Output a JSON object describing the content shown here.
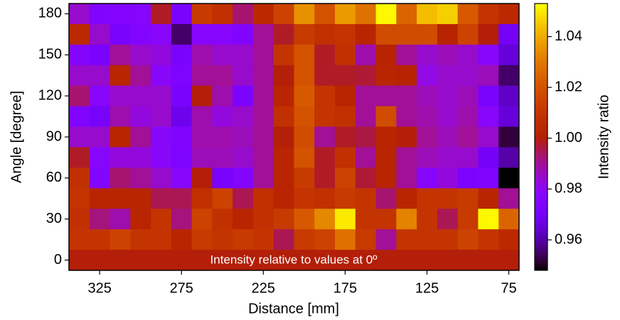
{
  "chart_data": {
    "type": "heatmap",
    "colormap": "gnuplot",
    "xlabel": "Distance [mm]",
    "ylabel": "Angle [degree]",
    "colorbar_label": "Intensity ratio",
    "annotation": "Intensity relative to values at 0º",
    "x": [
      337.5,
      325,
      312.5,
      300,
      287.5,
      275,
      262.5,
      250,
      237.5,
      225,
      212.5,
      200,
      187.5,
      175,
      162.5,
      150,
      137.5,
      125,
      112.5,
      100,
      87.5,
      75
    ],
    "y": [
      180,
      165,
      150,
      135,
      120,
      105,
      90,
      75,
      60,
      45,
      30,
      15,
      0
    ],
    "z": [
      [
        0.985,
        0.975,
        0.976,
        0.977,
        0.998,
        0.972,
        1.012,
        1.008,
        0.993,
        1.005,
        1.015,
        1.035,
        1.02,
        1.037,
        1.028,
        1.052,
        1.025,
        1.043,
        1.046,
        1.022,
        1.01,
        1.005
      ],
      [
        1.005,
        0.985,
        0.972,
        0.976,
        0.978,
        0.955,
        0.977,
        0.977,
        0.975,
        0.99,
        0.998,
        1.012,
        1.008,
        1.01,
        1.003,
        1.018,
        1.018,
        1.018,
        1.002,
        1.015,
        1.0,
        0.97
      ],
      [
        0.976,
        0.972,
        0.99,
        0.985,
        0.983,
        0.972,
        0.988,
        0.985,
        0.985,
        0.99,
        1.01,
        1.02,
        0.998,
        1.008,
        0.988,
        1.002,
        0.99,
        0.985,
        0.987,
        0.985,
        0.978,
        0.965
      ],
      [
        0.985,
        0.985,
        1.003,
        0.99,
        0.978,
        0.974,
        0.99,
        0.99,
        0.985,
        0.99,
        1.0,
        1.02,
        0.998,
        0.998,
        0.997,
        1.003,
        1.002,
        0.982,
        0.985,
        0.985,
        0.987,
        0.955
      ],
      [
        0.993,
        0.978,
        0.985,
        0.985,
        0.985,
        0.972,
        1.0,
        0.988,
        0.973,
        0.99,
        1.003,
        1.022,
        1.01,
        1.003,
        0.99,
        0.99,
        0.99,
        0.987,
        0.985,
        0.987,
        0.972,
        0.963
      ],
      [
        0.975,
        0.971,
        0.988,
        0.983,
        0.985,
        0.968,
        0.988,
        0.983,
        0.985,
        0.99,
        1.008,
        1.02,
        1.01,
        1.008,
        0.99,
        1.018,
        0.99,
        0.988,
        0.985,
        0.988,
        0.978,
        0.965
      ],
      [
        0.985,
        0.985,
        1.003,
        0.99,
        0.978,
        0.975,
        0.988,
        0.988,
        0.987,
        0.99,
        1.0,
        1.018,
        0.99,
        0.998,
        0.996,
        1.003,
        1.0,
        0.99,
        0.987,
        0.99,
        0.985,
        0.952
      ],
      [
        0.998,
        0.977,
        0.983,
        0.983,
        0.978,
        0.974,
        0.987,
        0.987,
        0.985,
        0.99,
        1.003,
        1.02,
        0.998,
        1.008,
        0.99,
        1.003,
        0.99,
        0.987,
        0.985,
        0.985,
        0.97,
        0.96
      ],
      [
        1.008,
        0.976,
        0.993,
        0.99,
        0.985,
        0.978,
        1.0,
        0.972,
        0.976,
        0.99,
        1.003,
        1.012,
        0.998,
        1.015,
        0.997,
        1.003,
        0.99,
        0.977,
        0.983,
        0.973,
        0.975,
        0.948
      ],
      [
        1.01,
        1.003,
        1.003,
        1.003,
        0.995,
        0.995,
        1.008,
        1.015,
        0.995,
        1.008,
        1.003,
        1.01,
        1.008,
        1.012,
        1.01,
        0.993,
        1.003,
        1.01,
        1.01,
        1.012,
        1.003,
        0.99
      ],
      [
        1.008,
        0.992,
        0.988,
        1.003,
        1.01,
        0.992,
        1.015,
        1.008,
        1.003,
        1.008,
        1.012,
        1.022,
        1.033,
        1.05,
        1.01,
        1.01,
        1.032,
        1.01,
        0.995,
        1.012,
        1.052,
        1.025
      ],
      [
        1.01,
        1.01,
        1.015,
        1.01,
        1.01,
        1.003,
        1.012,
        1.01,
        1.012,
        1.01,
        0.995,
        1.012,
        1.015,
        1.028,
        1.012,
        0.99,
        1.01,
        1.01,
        1.01,
        1.015,
        1.01,
        1.005
      ],
      [
        1,
        1,
        1,
        1,
        1,
        1,
        1,
        1,
        1,
        1,
        1,
        1,
        1,
        1,
        1,
        1,
        1,
        1,
        1,
        1,
        1,
        1
      ]
    ],
    "xlim": [
      343.75,
      68.75
    ],
    "ylim": [
      -7.5,
      187.5
    ],
    "xticks": [
      325,
      275,
      225,
      175,
      125,
      75
    ],
    "yticks": [
      0,
      30,
      60,
      90,
      120,
      150,
      180
    ],
    "clim": [
      0.948,
      1.053
    ],
    "cticks": [
      0.96,
      0.98,
      {
        "value": 1.0,
        "label": "1.00"
      },
      1.02,
      1.04
    ]
  }
}
